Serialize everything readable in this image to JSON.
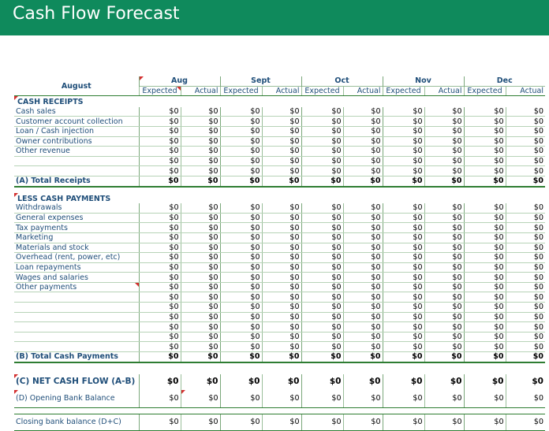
{
  "title": "Cash Flow Forecast",
  "corner_label": "August",
  "months": [
    "Aug",
    "Sept",
    "Oct",
    "Nov",
    "Dec"
  ],
  "sub_headers": {
    "expected": "Expected",
    "actual": "Actual"
  },
  "zero": "$0",
  "receipts": {
    "heading": "CASH RECEIPTS",
    "items": [
      "Cash sales",
      "Customer account collection",
      "Loan / Cash injection",
      "Owner contributions",
      "Other revenue",
      "",
      ""
    ],
    "total_label": "(A) Total Receipts"
  },
  "payments": {
    "heading": "LESS CASH PAYMENTS",
    "items": [
      "Withdrawals",
      "General expenses",
      "Tax payments",
      "Marketing",
      "Materials and stock",
      "Overhead (rent, power, etc)",
      "Loan repayments",
      "Wages and salaries",
      "Other payments",
      "",
      "",
      "",
      "",
      "",
      ""
    ],
    "total_label": "(B) Total Cash Payments"
  },
  "net_cash_flow_label": "(C)  NET CASH FLOW (A-B)",
  "opening_balance_label": "(D) Opening Bank Balance",
  "closing_balance_label": "Closing bank balance (D+C)",
  "colors": {
    "banner": "#0f8a5c",
    "text": "#1f4e79",
    "grid": "#2e7d32",
    "flag": "#d32f2f"
  }
}
